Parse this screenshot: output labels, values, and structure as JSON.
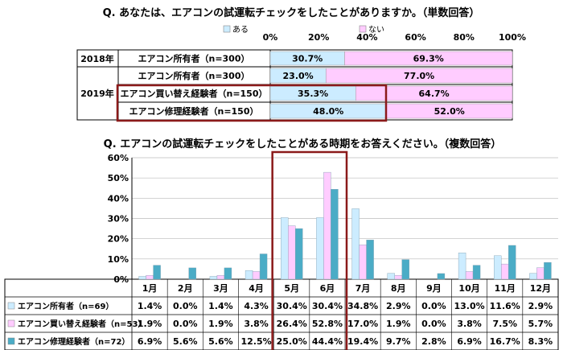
{
  "chart_data": [
    {
      "type": "bar",
      "orientation": "horizontal-stacked",
      "title": "Q. あなたは、エアコンの試運転チェックをしたことがありますか。（単数回答）",
      "legend": [
        "ある",
        "ない"
      ],
      "legend_placement": "top",
      "axis_ticks": [
        "0%",
        "20%",
        "40%",
        "60%",
        "80%",
        "100%"
      ],
      "xlim": [
        0,
        100
      ],
      "colors": {
        "ある": "#CCECFF",
        "ない": "#FFCCFF"
      },
      "rows": [
        {
          "year": "2018年",
          "label": "エアコン所有者（n=300）",
          "values": [
            30.7,
            69.3
          ],
          "value_labels": [
            "30.7%",
            "69.3%"
          ]
        },
        {
          "year": "2019年",
          "label": "エアコン所有者（n=300）",
          "values": [
            23.0,
            77.0
          ],
          "value_labels": [
            "23.0%",
            "77.0%"
          ]
        },
        {
          "year": "",
          "label": "エアコン買い替え経験者（n=150）",
          "values": [
            35.3,
            64.7
          ],
          "value_labels": [
            "35.3%",
            "64.7%"
          ]
        },
        {
          "year": "",
          "label": "エアコン修理経験者（n=150）",
          "values": [
            48.0,
            52.0
          ],
          "value_labels": [
            "48.0%",
            "52.0%"
          ]
        }
      ]
    },
    {
      "type": "bar",
      "orientation": "vertical-grouped",
      "title": "Q. エアコンの試運転チェックをしたことがある時期をお答えください。（複数回答）",
      "ylim": [
        0,
        60
      ],
      "y_ticks": [
        "0%",
        "10%",
        "20%",
        "30%",
        "40%",
        "50%",
        "60%"
      ],
      "grid": true,
      "categories": [
        "1月",
        "2月",
        "3月",
        "4月",
        "5月",
        "6月",
        "7月",
        "8月",
        "9月",
        "10月",
        "11月",
        "12月"
      ],
      "series": [
        {
          "name": "エアコン所有者（n=69）",
          "color": "#CCECFF",
          "values": [
            1.4,
            0.0,
            1.4,
            4.3,
            30.4,
            30.4,
            34.8,
            2.9,
            0.0,
            13.0,
            11.6,
            2.9
          ],
          "labels": [
            "1.4%",
            "0.0%",
            "1.4%",
            "4.3%",
            "30.4%",
            "30.4%",
            "34.8%",
            "2.9%",
            "0.0%",
            "13.0%",
            "11.6%",
            "2.9%"
          ]
        },
        {
          "name": "エアコン買い替え経験者（n=53）",
          "color": "#FFCCFF",
          "values": [
            1.9,
            0.0,
            1.9,
            3.8,
            26.4,
            52.8,
            17.0,
            1.9,
            0.0,
            3.8,
            7.5,
            5.7
          ],
          "labels": [
            "1.9%",
            "0.0%",
            "1.9%",
            "3.8%",
            "26.4%",
            "52.8%",
            "17.0%",
            "1.9%",
            "0.0%",
            "3.8%",
            "7.5%",
            "5.7%"
          ]
        },
        {
          "name": "エアコン修理経験者（n=72）",
          "color": "#4BACC6",
          "values": [
            6.9,
            5.6,
            5.6,
            12.5,
            25.0,
            44.4,
            19.4,
            9.7,
            2.8,
            6.9,
            16.7,
            8.3
          ],
          "labels": [
            "6.9%",
            "5.6%",
            "5.6%",
            "12.5%",
            "25.0%",
            "44.4%",
            "19.4%",
            "9.7%",
            "2.8%",
            "6.9%",
            "16.7%",
            "8.3%"
          ]
        }
      ],
      "highlight_color": "#8B1A1A"
    }
  ]
}
